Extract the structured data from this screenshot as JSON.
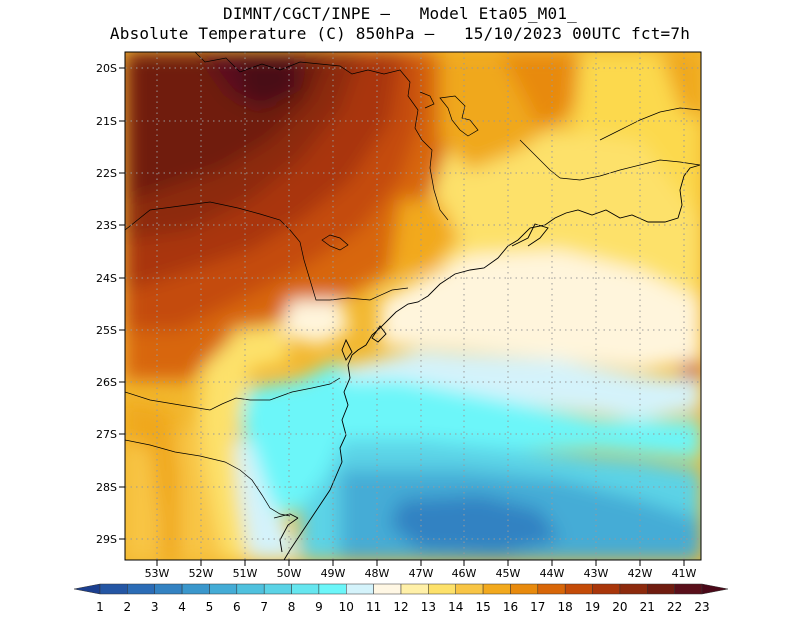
{
  "titles": {
    "line1": "DIMNT/CGCT/INPE –   Model Eta05_M01_",
    "line2": "Absolute Temperature (C) 850hPa –   15/10/2023 00UTC fct=7h"
  },
  "map": {
    "lat_labels": [
      "20S",
      "21S",
      "22S",
      "23S",
      "24S",
      "25S",
      "26S",
      "27S",
      "28S",
      "29S"
    ],
    "lon_labels": [
      "53W",
      "52W",
      "51W",
      "50W",
      "49W",
      "48W",
      "47W",
      "46W",
      "45W",
      "44W",
      "43W",
      "42W",
      "41W"
    ],
    "grid": "dotted",
    "coastline_color": "#000000"
  },
  "colorbar": {
    "labels": [
      "1",
      "2",
      "3",
      "4",
      "5",
      "6",
      "7",
      "8",
      "9",
      "10",
      "11",
      "12",
      "13",
      "14",
      "15",
      "16",
      "17",
      "18",
      "19",
      "20",
      "21",
      "22",
      "23"
    ],
    "colors": [
      "#1b3f8f",
      "#2456a4",
      "#2b6cb6",
      "#3382c2",
      "#3a97cc",
      "#44acd6",
      "#4fc1de",
      "#5bd3e6",
      "#66e6ef",
      "#6cf6f9",
      "#d4f3fb",
      "#fff7e4",
      "#fff0a8",
      "#fde16a",
      "#f8c545",
      "#f2a91d",
      "#e88a0d",
      "#d86608",
      "#c44b08",
      "#a9360a",
      "#8d2a0d",
      "#701c10",
      "#5a0f1a",
      "#4a0818"
    ]
  }
}
